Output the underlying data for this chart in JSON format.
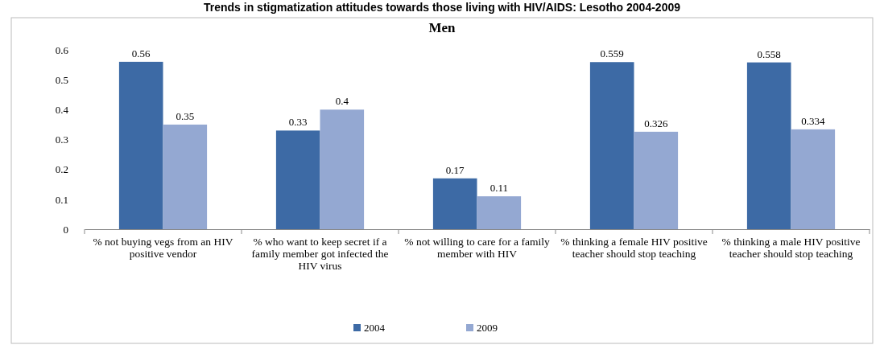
{
  "chart_data": {
    "type": "bar",
    "title": "Trends in stigmatization attitudes towards those living with HIV/AIDS: Lesotho 2004-2009",
    "subtitle": "Men",
    "categories": [
      "% not buying vegs from an HIV positive vendor",
      "% who want to keep secret if a family member got infected the HIV virus",
      "% not willing to care for a family member with HIV",
      "% thinking a female HIV positive teacher should stop teaching",
      "% thinking a male HIV positive teacher should stop teaching"
    ],
    "series": [
      {
        "name": "2004",
        "color": "#3d6aa5",
        "values": [
          0.56,
          0.33,
          0.17,
          0.559,
          0.558
        ]
      },
      {
        "name": "2009",
        "color": "#94a8d2",
        "values": [
          0.35,
          0.4,
          0.11,
          0.326,
          0.334
        ]
      }
    ],
    "ylim": [
      0,
      0.6
    ],
    "yticks": [
      0,
      0.1,
      0.2,
      0.3,
      0.4,
      0.5,
      0.6
    ],
    "data_labels": true,
    "legend": "bottom"
  }
}
